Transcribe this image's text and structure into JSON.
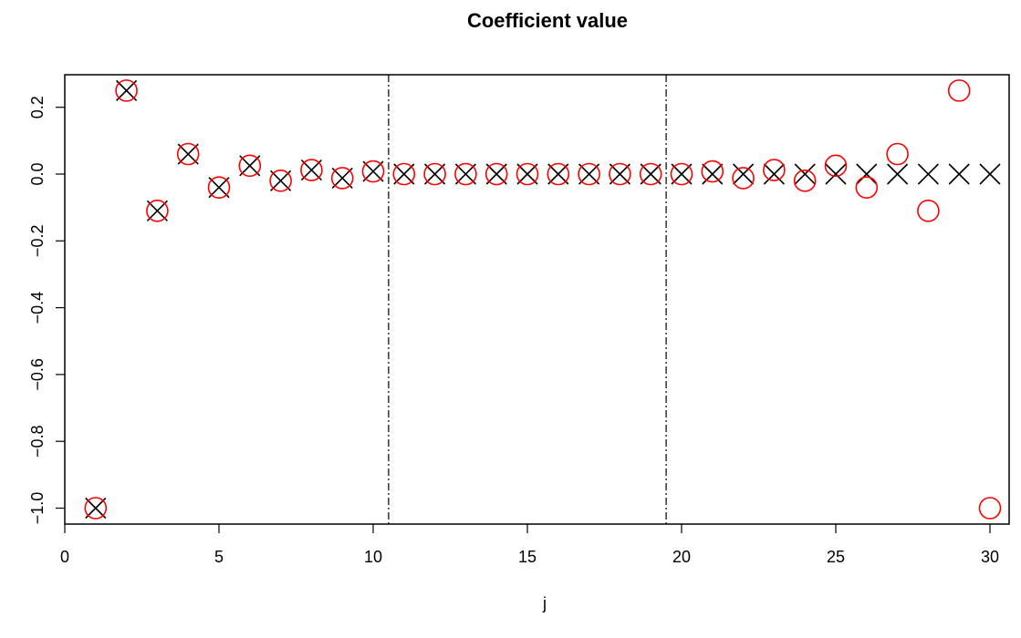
{
  "chart_data": {
    "type": "scatter",
    "title": "Coefficient value",
    "xlabel": "j",
    "ylabel": "",
    "xlim": [
      0,
      30
    ],
    "ylim": [
      -1.0,
      0.25
    ],
    "x_ticks": [
      0,
      5,
      10,
      15,
      20,
      25,
      30
    ],
    "x_tick_labels": [
      "0",
      "5",
      "10",
      "15",
      "20",
      "25",
      "30"
    ],
    "y_ticks": [
      -1.0,
      -0.8,
      -0.6,
      -0.4,
      -0.2,
      0.0,
      0.2
    ],
    "y_tick_labels": [
      "−1.0",
      "−0.8",
      "−0.6",
      "−0.4",
      "−0.2",
      "0.0",
      "0.2"
    ],
    "vlines": [
      10.5,
      19.5
    ],
    "grid": false,
    "series": [
      {
        "marker": "cross",
        "color": "#000000",
        "x": [
          1,
          2,
          3,
          4,
          5,
          6,
          7,
          8,
          9,
          10,
          11,
          12,
          13,
          14,
          15,
          16,
          17,
          18,
          19,
          20,
          21,
          22,
          23,
          24,
          25,
          26,
          27,
          28,
          29,
          30
        ],
        "y": [
          -1.0,
          0.25,
          -0.11,
          0.06,
          -0.04,
          0.025,
          -0.02,
          0.012,
          -0.012,
          0.008,
          0,
          0,
          0,
          0,
          0,
          0,
          0,
          0,
          0,
          0,
          0,
          0,
          0,
          0,
          0,
          0,
          0,
          0,
          0,
          0
        ]
      },
      {
        "marker": "circle",
        "color": "#ff0000",
        "x": [
          1,
          2,
          3,
          4,
          5,
          6,
          7,
          8,
          9,
          10,
          11,
          12,
          13,
          14,
          15,
          16,
          17,
          18,
          19,
          20,
          21,
          22,
          23,
          24,
          25,
          26,
          27,
          28,
          29,
          30
        ],
        "y": [
          -1.0,
          0.25,
          -0.11,
          0.06,
          -0.04,
          0.025,
          -0.02,
          0.012,
          -0.012,
          0.008,
          0,
          0,
          0,
          0,
          0,
          0,
          0,
          0,
          0,
          0,
          0.008,
          -0.012,
          0.012,
          -0.02,
          0.025,
          -0.04,
          0.06,
          -0.11,
          0.25,
          -1.0
        ]
      }
    ]
  }
}
